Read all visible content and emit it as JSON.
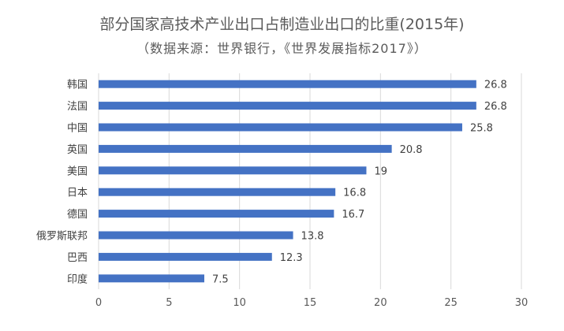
{
  "chart_data": {
    "type": "bar",
    "orientation": "horizontal",
    "title": "部分国家高技术产业出口占制造业出口的比重(2015年)",
    "subtitle": "（数据来源：世界银行，《世界发展指标2017》）",
    "categories": [
      "韩国",
      "法国",
      "中国",
      "英国",
      "美国",
      "日本",
      "德国",
      "俄罗斯联邦",
      "巴西",
      "印度"
    ],
    "values": [
      26.8,
      26.8,
      25.8,
      20.8,
      19,
      16.8,
      16.7,
      13.8,
      12.3,
      7.5
    ],
    "value_labels": [
      "26.8",
      "26.8",
      "25.8",
      "20.8",
      "19",
      "16.8",
      "16.7",
      "13.8",
      "12.3",
      "7.5"
    ],
    "xlim": [
      0,
      30
    ],
    "xticks": [
      0,
      5,
      10,
      15,
      20,
      25,
      30
    ],
    "xtick_labels": [
      "0",
      "5",
      "10",
      "15",
      "20",
      "25",
      "30"
    ],
    "xlabel": "",
    "ylabel": "",
    "grid": "vertical",
    "bar_color": "#4472c4"
  }
}
